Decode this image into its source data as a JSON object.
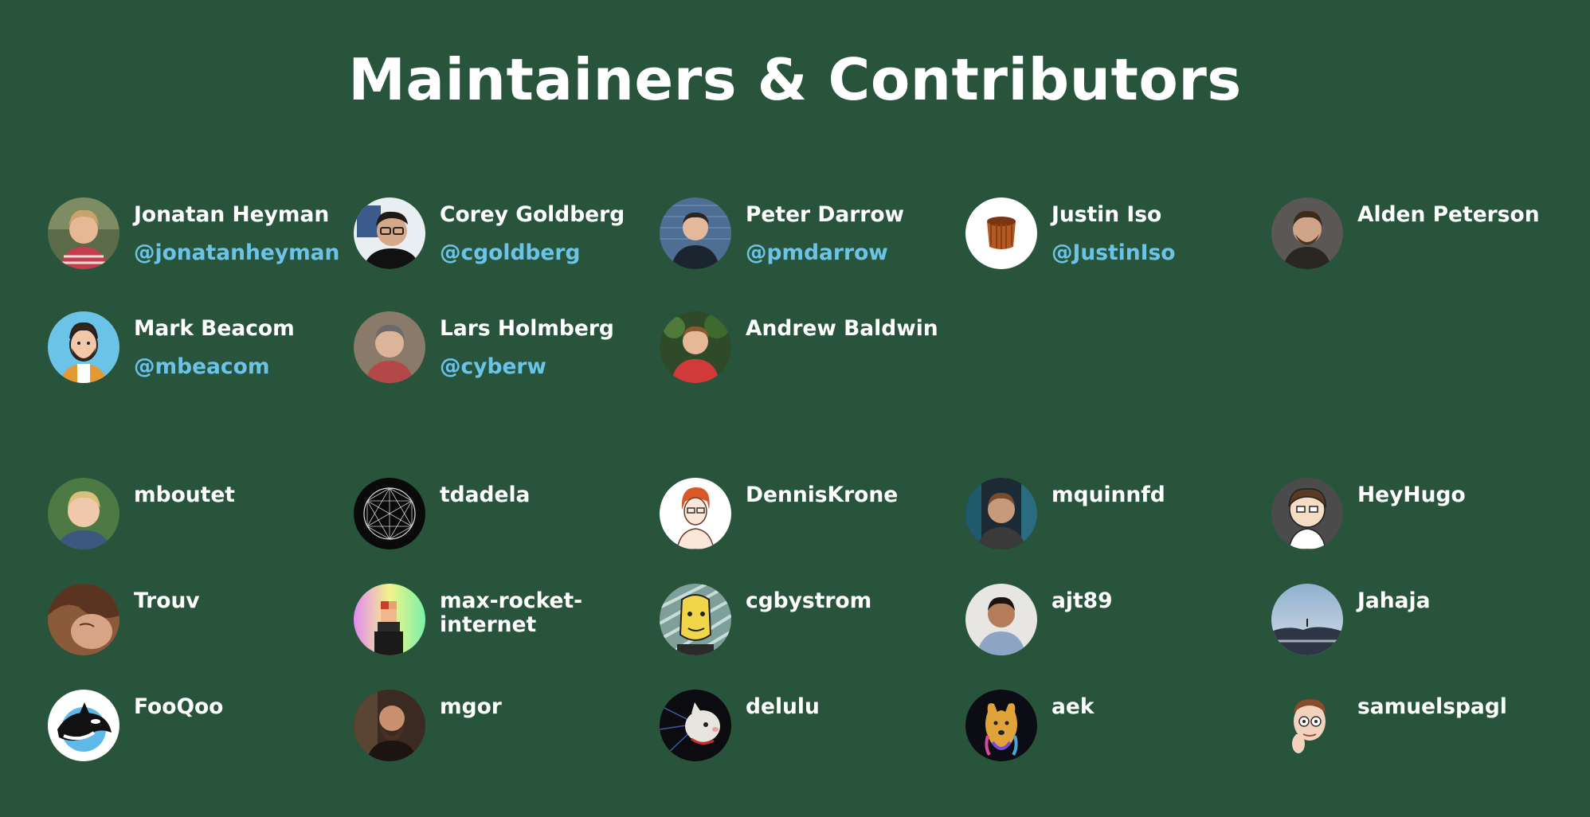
{
  "page": {
    "title": "Maintainers & Contributors",
    "background": "#27543b",
    "handle_color": "#6cc3e8"
  },
  "maintainers": [
    {
      "name": "Jonatan Heyman",
      "handle": "@jonatanheyman",
      "avatar": "photo-young-man-red-shirt"
    },
    {
      "name": "Corey Goldberg",
      "handle": "@cgoldberg",
      "avatar": "photo-man-glasses"
    },
    {
      "name": "Peter Darrow",
      "handle": "@pmdarrow",
      "avatar": "photo-man-brick-wall"
    },
    {
      "name": "Justin Iso",
      "handle": "@JustinIso",
      "avatar": "canele-pastry"
    },
    {
      "name": "Alden Peterson",
      "handle": "",
      "avatar": "photo-man-beard"
    },
    {
      "name": "Mark Beacom",
      "handle": "@mbeacom",
      "avatar": "cartoon-bearded-man"
    },
    {
      "name": "Lars Holmberg",
      "handle": "@cyberw",
      "avatar": "photo-man-grey-hair"
    },
    {
      "name": "Andrew Baldwin",
      "handle": "",
      "avatar": "photo-man-trees"
    }
  ],
  "contributors": [
    {
      "name": "mboutet",
      "avatar": "photo-man-blond"
    },
    {
      "name": "tdadela",
      "avatar": "geometric-mandala"
    },
    {
      "name": "DennisKrone",
      "avatar": "drawing-redhead-glasses"
    },
    {
      "name": "mquinnfd",
      "avatar": "photo-man-neon"
    },
    {
      "name": "HeyHugo",
      "avatar": "cartoon-south-park"
    },
    {
      "name": "Trouv",
      "avatar": "photo-face-closeup"
    },
    {
      "name": "max-rocket-internet",
      "avatar": "pixel-art-rainbow"
    },
    {
      "name": "cgbystrom",
      "avatar": "cartoon-yellow-face"
    },
    {
      "name": "ajt89",
      "avatar": "photo-man-smiling"
    },
    {
      "name": "Jahaja",
      "avatar": "photo-landscape-rocks"
    },
    {
      "name": "FooQoo",
      "avatar": "orca-whale"
    },
    {
      "name": "mgor",
      "avatar": "photo-bearded-man-dark"
    },
    {
      "name": "delulu",
      "avatar": "photo-white-cat"
    },
    {
      "name": "aek",
      "avatar": "rainbow-dog"
    },
    {
      "name": "samuelspagl",
      "avatar": "memoji-glasses"
    }
  ]
}
